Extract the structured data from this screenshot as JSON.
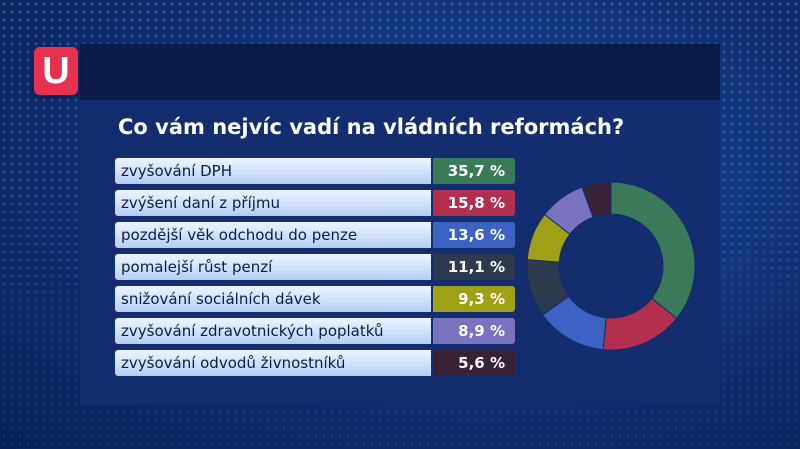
{
  "logo": {
    "text": "U",
    "color": "#e8314f"
  },
  "chart_data": {
    "type": "pie",
    "title": "Co vám nejvíc vadí na vládních reformách?",
    "categories": [
      "zvyšování DPH",
      "zvýšení daní z příjmu",
      "pozdější věk odchodu do penze",
      "pomalejší růst penzí",
      "snižování sociálních dávek",
      "zvyšování zdravotnických poplatků",
      "zvyšování odvodů živnostníků"
    ],
    "values": [
      35.7,
      15.8,
      13.6,
      11.1,
      9.3,
      8.9,
      5.6
    ],
    "value_labels": [
      "35,7 %",
      "15,8 %",
      "13,6 %",
      "11,1 %",
      "9,3 %",
      "8,9 %",
      "5,6 %"
    ],
    "colors": [
      "#3b7a58",
      "#b2304d",
      "#3c62c4",
      "#2d3a4e",
      "#a0a017",
      "#7a73bf",
      "#3a2236"
    ],
    "style": "donut"
  }
}
